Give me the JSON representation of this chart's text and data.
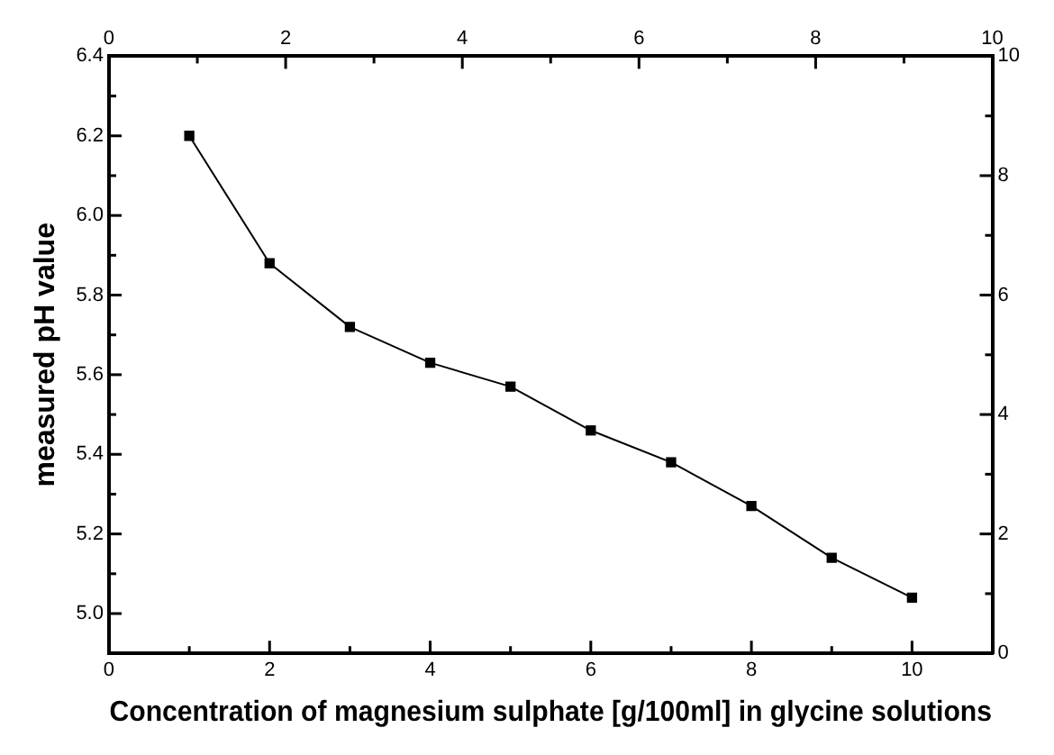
{
  "chart_data": {
    "type": "line",
    "xlabel": "Concentration of magnesium sulphate [g/100ml] in glycine solutions",
    "ylabel": "measured pH value",
    "x": [
      1,
      2,
      3,
      4,
      5,
      6,
      7,
      8,
      9,
      10
    ],
    "series": [
      {
        "color": "#000000",
        "values": [
          6.2,
          5.88,
          5.72,
          5.63,
          5.57,
          5.46,
          5.38,
          5.27,
          5.14,
          5.04
        ]
      }
    ],
    "marker": "square",
    "line_style": "solid",
    "grid": false,
    "legend": false,
    "xlim": [
      0,
      11
    ],
    "xticks": [
      0,
      {
        "value": 1,
        "label": null
      },
      2,
      {
        "value": 3,
        "label": null
      },
      4,
      {
        "value": 5,
        "label": null
      },
      6,
      {
        "value": 7,
        "label": null
      },
      8,
      {
        "value": 9,
        "label": null
      },
      10,
      {
        "value": 11,
        "label": null
      }
    ],
    "x2lim": [
      0,
      10
    ],
    "x2ticks": [
      0,
      {
        "value": 1,
        "label": null
      },
      2,
      {
        "value": 3,
        "label": null
      },
      4,
      {
        "value": 5,
        "label": null
      },
      6,
      {
        "value": 7,
        "label": null
      },
      8,
      {
        "value": 9,
        "label": null
      },
      10
    ],
    "ylim": [
      4.9,
      6.4
    ],
    "yticks": [
      {
        "value": 4.9,
        "label": null
      },
      {
        "value": 5,
        "label": "5.0"
      },
      {
        "value": 5.1,
        "label": null
      },
      5.2,
      {
        "value": 5.3,
        "label": null
      },
      5.4,
      {
        "value": 5.5,
        "label": null
      },
      5.6,
      {
        "value": 5.7,
        "label": null
      },
      5.8,
      {
        "value": 5.9,
        "label": null
      },
      {
        "value": 6,
        "label": "6.0"
      },
      {
        "value": 6.1,
        "label": null
      },
      6.2,
      {
        "value": 6.3,
        "label": null
      },
      6.4
    ],
    "y2lim": [
      0,
      10
    ],
    "y2ticks": [
      0,
      {
        "value": 1,
        "label": null
      },
      2,
      {
        "value": 3,
        "label": null
      },
      4,
      {
        "value": 5,
        "label": null
      },
      6,
      {
        "value": 7,
        "label": null
      },
      8,
      {
        "value": 9,
        "label": null
      },
      10
    ]
  }
}
